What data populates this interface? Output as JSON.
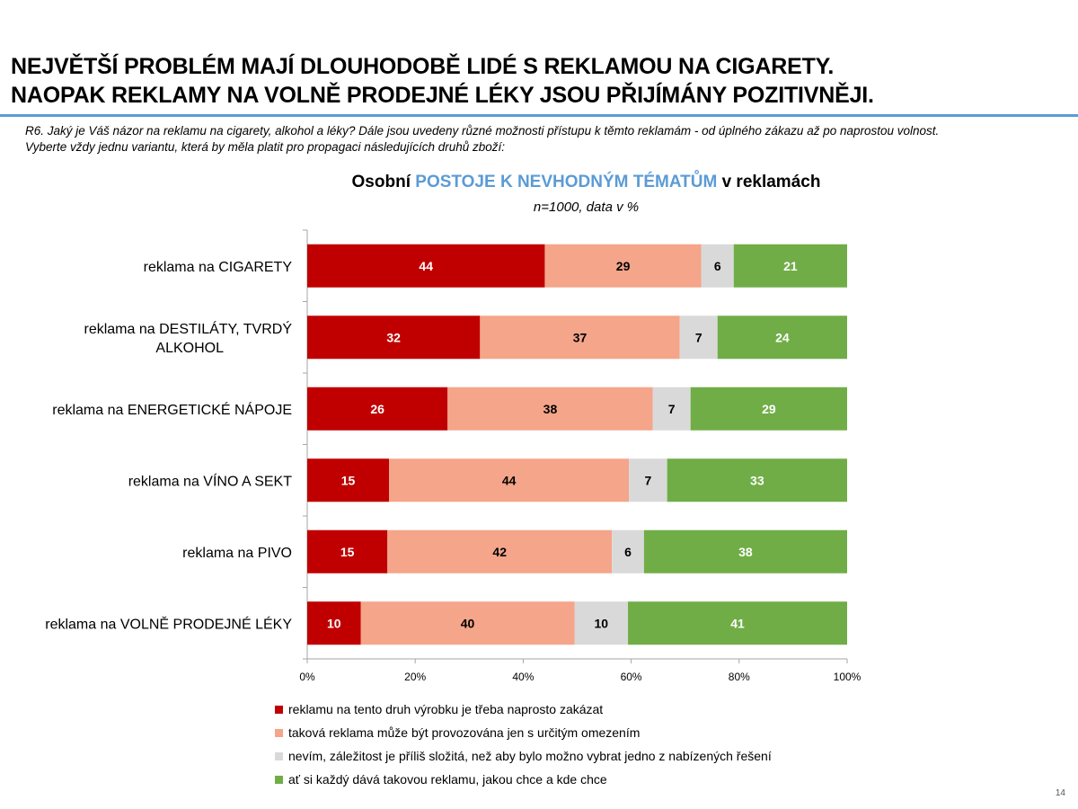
{
  "headline": {
    "line1": "NEJVĚTŠÍ PROBLÉM MAJÍ DLOUHODOBĚ LIDÉ S REKLAMOU NA CIGARETY.",
    "line2": "NAOPAK REKLAMY NA VOLNĚ PRODEJNÉ LÉKY JSOU PŘIJÍMÁNY POZITIVNĚJI."
  },
  "question": {
    "line1": "R6.  Jaký je Váš názor na reklamu na cigarety, alkohol a léky? Dále jsou uvedeny různé možnosti přístupu k těmto reklamám - od úplného zákazu až po naprostou volnost.",
    "line2": "Vyberte vždy jednu variantu, která by měla platit pro propagaci následujících druhů zboží:"
  },
  "chart_data": {
    "type": "bar",
    "orientation": "horizontal",
    "stacked": "percent",
    "title_prefix": "Osobní ",
    "title_highlight": "POSTOJE K NEVHODNÝM TÉMATŮM",
    "title_suffix": " v reklamách",
    "subtitle": "n=1000, data v %",
    "categories": [
      "reklama na CIGARETY",
      "reklama na DESTILÁTY, TVRDÝ ALKOHOL",
      "reklama na ENERGETICKÉ NÁPOJE",
      "reklama na VÍNO A SEKT",
      "reklama na PIVO",
      "reklama na VOLNĚ PRODEJNÉ LÉKY"
    ],
    "category_lines": [
      [
        "reklama na CIGARETY"
      ],
      [
        "reklama na DESTILÁTY, TVRDÝ",
        "ALKOHOL"
      ],
      [
        "reklama na ENERGETICKÉ NÁPOJE"
      ],
      [
        "reklama na VÍNO A SEKT"
      ],
      [
        "reklama na PIVO"
      ],
      [
        "reklama na VOLNĚ PRODEJNÉ LÉKY"
      ]
    ],
    "series": [
      {
        "name": "reklamu na tento druh výrobku je třeba naprosto zakázat",
        "color": "#c00000",
        "label_color": "#ffffff",
        "values": [
          44,
          32,
          26,
          15,
          15,
          10
        ]
      },
      {
        "name": "taková reklama může být provozována jen s určitým omezením",
        "color": "#f4a58a",
        "label_color": "#000000",
        "values": [
          29,
          37,
          38,
          44,
          42,
          40
        ]
      },
      {
        "name": "nevím, záležitost je příliš složitá, než aby bylo možno vybrat jedno z nabízených řešení",
        "color": "#d9d9d9",
        "label_color": "#000000",
        "values": [
          6,
          7,
          7,
          7,
          6,
          10
        ]
      },
      {
        "name": "ať si každý dává takovou reklamu, jakou chce a kde chce",
        "color": "#70ad47",
        "label_color": "#ffffff",
        "values": [
          21,
          24,
          29,
          33,
          38,
          41
        ]
      }
    ],
    "xlim": [
      0,
      100
    ],
    "x_ticks": [
      "0%",
      "20%",
      "40%",
      "60%",
      "80%",
      "100%"
    ],
    "legend_position": "bottom",
    "grid": false
  },
  "page_number": "14"
}
